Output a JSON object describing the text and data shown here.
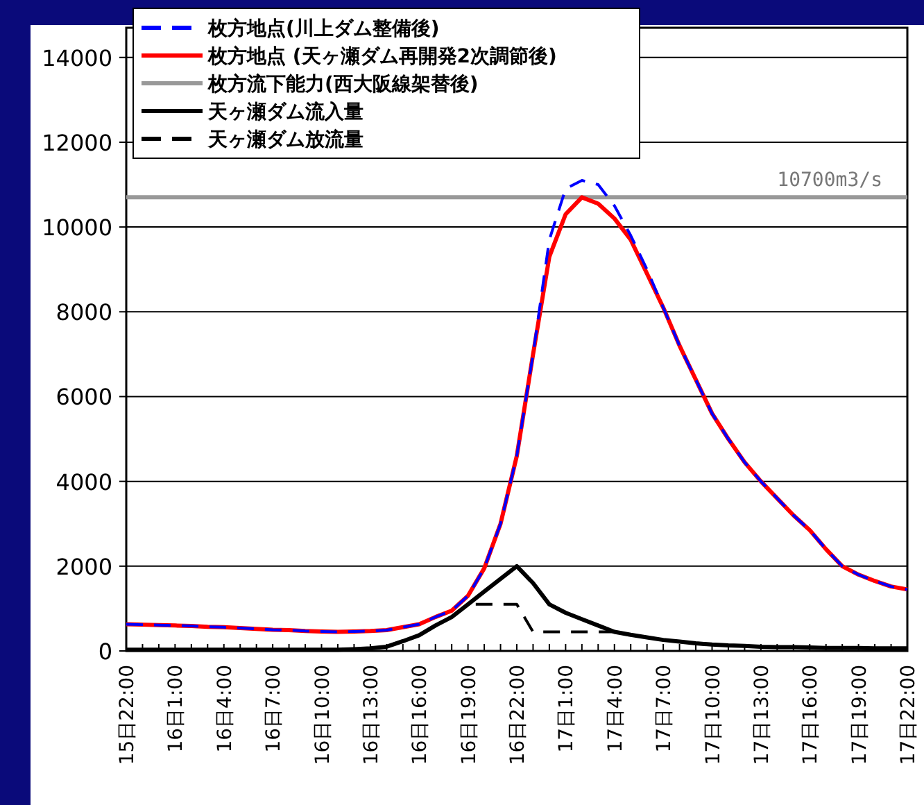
{
  "chart_data": {
    "type": "line",
    "categories": [
      "15日22:00",
      null,
      null,
      "16日1:00",
      null,
      null,
      "16日4:00",
      null,
      null,
      "16日7:00",
      null,
      null,
      "16日10:00",
      null,
      null,
      "16日13:00",
      null,
      null,
      "16日16:00",
      null,
      null,
      "16日19:00",
      null,
      null,
      "16日22:00",
      null,
      null,
      "17日1:00",
      null,
      null,
      "17日4:00",
      null,
      null,
      "17日7:00",
      null,
      null,
      "17日10:00",
      null,
      null,
      "17日13:00",
      null,
      null,
      "17日16:00",
      null,
      null,
      "17日19:00",
      null,
      null,
      "17日22:00"
    ],
    "ylim": [
      0,
      14700
    ],
    "yticks": [
      0,
      2000,
      4000,
      6000,
      8000,
      10000,
      12000,
      14000
    ],
    "grid": "y",
    "legend": "top left",
    "marker": "none",
    "series": [
      {
        "name": "枚方地点(川上ダム整備後)",
        "color": "#0000ff",
        "line_style": "dashed",
        "values": [
          630,
          620,
          610,
          600,
          590,
          570,
          560,
          540,
          520,
          500,
          490,
          470,
          460,
          450,
          460,
          470,
          490,
          560,
          630,
          800,
          950,
          1300,
          1950,
          3000,
          4600,
          7000,
          9700,
          10900,
          11100,
          11000,
          10500,
          9800,
          9000,
          8100,
          7200,
          6400,
          5600,
          5000,
          4450,
          4000,
          3600,
          3200,
          2850,
          2400,
          2000,
          1800,
          1650,
          1520,
          1450
        ]
      },
      {
        "name": "枚方地点 (天ヶ瀬ダム再開発2次調節後)",
        "color": "#ff0000",
        "line_style": "solid",
        "values": [
          630,
          620,
          610,
          600,
          590,
          570,
          560,
          540,
          520,
          500,
          490,
          470,
          460,
          450,
          460,
          470,
          490,
          560,
          630,
          800,
          950,
          1300,
          1950,
          3000,
          4600,
          7000,
          9300,
          10300,
          10700,
          10550,
          10200,
          9700,
          8900,
          8100,
          7200,
          6400,
          5600,
          5000,
          4450,
          4000,
          3600,
          3200,
          2850,
          2400,
          2000,
          1800,
          1650,
          1520,
          1450
        ]
      },
      {
        "name": "枚方流下能力(西大阪線架替後)",
        "color": "#999999",
        "line_style": "solid",
        "values": [
          10700,
          10700,
          10700,
          10700,
          10700,
          10700,
          10700,
          10700,
          10700,
          10700,
          10700,
          10700,
          10700,
          10700,
          10700,
          10700,
          10700,
          10700,
          10700,
          10700,
          10700,
          10700,
          10700,
          10700,
          10700,
          10700,
          10700,
          10700,
          10700,
          10700,
          10700,
          10700,
          10700,
          10700,
          10700,
          10700,
          10700,
          10700,
          10700,
          10700,
          10700,
          10700,
          10700,
          10700,
          10700,
          10700,
          10700,
          10700,
          10700
        ]
      },
      {
        "name": "天ヶ瀬ダム流入量",
        "color": "#000000",
        "line_style": "solid",
        "values": [
          30,
          30,
          30,
          30,
          30,
          30,
          30,
          30,
          30,
          30,
          30,
          30,
          30,
          30,
          40,
          60,
          100,
          230,
          370,
          600,
          800,
          1100,
          1400,
          1700,
          2000,
          1600,
          1100,
          900,
          750,
          600,
          450,
          380,
          320,
          260,
          220,
          180,
          150,
          130,
          120,
          100,
          90,
          90,
          80,
          70,
          70,
          70,
          60,
          60,
          60
        ]
      },
      {
        "name": "天ヶ瀬ダム放流量",
        "color": "#000000",
        "line_style": "dashed",
        "values": [
          30,
          30,
          30,
          30,
          30,
          30,
          30,
          30,
          30,
          30,
          30,
          30,
          30,
          30,
          40,
          60,
          100,
          230,
          370,
          600,
          800,
          1100,
          1100,
          1100,
          1100,
          450,
          450,
          450,
          450,
          450,
          450,
          380,
          320,
          260,
          220,
          180,
          150,
          130,
          120,
          100,
          90,
          90,
          80,
          70,
          70,
          70,
          60,
          60,
          60
        ]
      }
    ],
    "annotations": [
      {
        "text": "10700m3/s",
        "y": 10700
      }
    ]
  }
}
